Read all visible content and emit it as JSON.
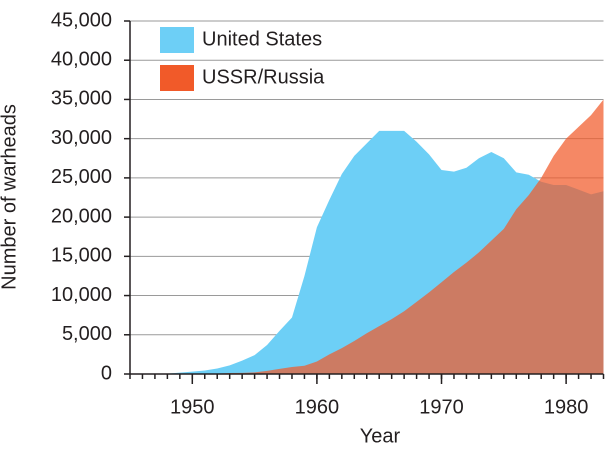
{
  "chart_data": {
    "type": "area",
    "x_label": "Year",
    "y_label": "Number of warheads",
    "x": [
      1945,
      1946,
      1947,
      1948,
      1949,
      1950,
      1951,
      1952,
      1953,
      1954,
      1955,
      1956,
      1957,
      1958,
      1959,
      1960,
      1961,
      1962,
      1963,
      1964,
      1965,
      1966,
      1967,
      1968,
      1969,
      1970,
      1971,
      1972,
      1973,
      1974,
      1975,
      1976,
      1977,
      1978,
      1979,
      1980,
      1981,
      1982,
      1983
    ],
    "series": [
      {
        "name": "United States",
        "color": "#6dcff6",
        "values": [
          0,
          0,
          0,
          50,
          170,
          300,
          450,
          700,
          1100,
          1700,
          2400,
          3700,
          5500,
          7200,
          12500,
          18700,
          22200,
          25500,
          27800,
          29400,
          31000,
          31000,
          31000,
          29600,
          28000,
          26000,
          25800,
          26300,
          27500,
          28300,
          27500,
          25700,
          25400,
          24500,
          24100,
          24100,
          23500,
          22900,
          23300
        ]
      },
      {
        "name": "USSR/Russia",
        "color": "#f15a29",
        "values": [
          0,
          0,
          0,
          0,
          0,
          5,
          25,
          50,
          120,
          150,
          200,
          400,
          650,
          900,
          1050,
          1600,
          2500,
          3300,
          4200,
          5200,
          6100,
          7000,
          8000,
          9200,
          10400,
          11700,
          13000,
          14200,
          15500,
          17000,
          18500,
          21000,
          22800,
          25000,
          27800,
          30000,
          31500,
          33000,
          35000
        ]
      }
    ],
    "xlim": [
      1945,
      1983
    ],
    "xticks": [
      1950,
      1960,
      1970,
      1980
    ],
    "ylim": [
      0,
      45000
    ],
    "yticks": [
      0,
      {
        "value": 5000,
        "label": "5,000"
      },
      {
        "value": 10000,
        "label": "10,000"
      },
      {
        "value": 15000,
        "label": "15,000"
      },
      {
        "value": 20000,
        "label": "20,000"
      },
      {
        "value": 25000,
        "label": "25,000"
      },
      {
        "value": 30000,
        "label": "30,000"
      },
      {
        "value": 35000,
        "label": "35,000"
      },
      {
        "value": 40000,
        "label": "40,000"
      },
      {
        "value": 45000,
        "label": "45,000"
      }
    ],
    "grid": true,
    "legend": "upper-left"
  }
}
